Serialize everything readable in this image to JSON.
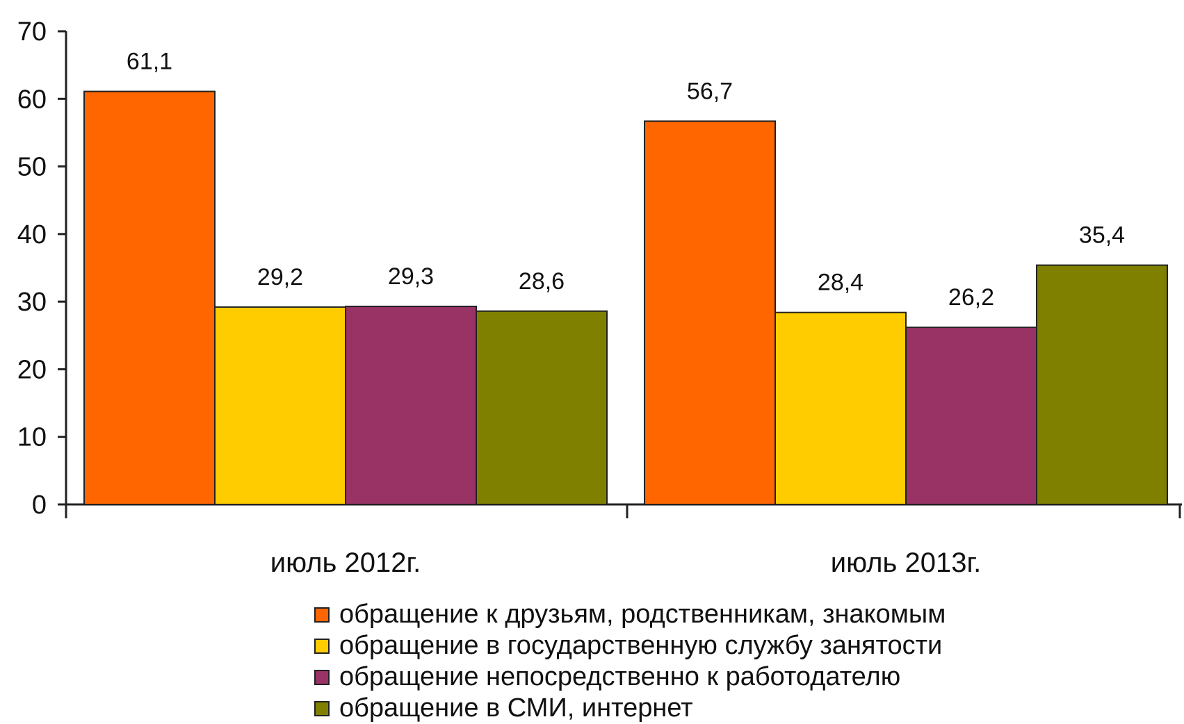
{
  "chart_data": {
    "type": "bar",
    "categories": [
      "июль 2012г.",
      "июль 2013г."
    ],
    "ylim": [
      0,
      70
    ],
    "yticks": [
      0,
      10,
      20,
      30,
      40,
      50,
      60,
      70
    ],
    "grid": false,
    "legend_position": "bottom",
    "series": [
      {
        "name": "обращение к друзьям, родственникам, знакомым",
        "color": "#ff6600",
        "values": [
          61.1,
          56.7
        ],
        "labels": [
          "61,1",
          "56,7"
        ]
      },
      {
        "name": "обращение в государственную службу занятости",
        "color": "#ffcc00",
        "values": [
          29.2,
          28.4
        ],
        "labels": [
          "29,2",
          "28,4"
        ]
      },
      {
        "name": "обращение непосредственно к работодателю",
        "color": "#993366",
        "values": [
          29.3,
          26.2
        ],
        "labels": [
          "29,3",
          "26,2"
        ]
      },
      {
        "name": "обращение в СМИ, интернет",
        "color": "#808000",
        "values": [
          28.6,
          35.4
        ],
        "labels": [
          "28,6",
          "35,4"
        ]
      }
    ]
  }
}
